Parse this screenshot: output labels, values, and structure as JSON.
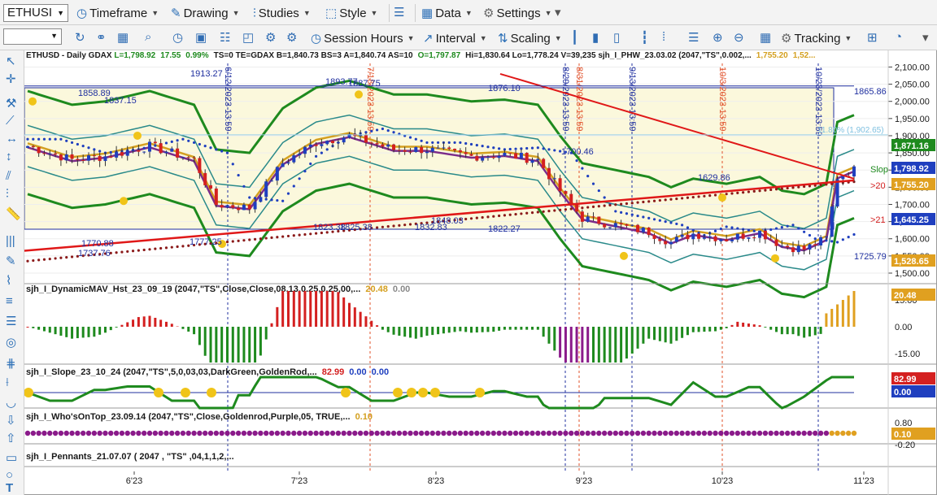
{
  "toolbar": {
    "symbol": "ETHUSI",
    "timeframe": "Timeframe",
    "drawing": "Drawing",
    "studies": "Studies",
    "style": "Style",
    "data": "Data",
    "settings": "Settings",
    "session_hours": "Session Hours",
    "interval": "Interval",
    "scaling": "Scaling",
    "tracking": "Tracking"
  },
  "header": {
    "prefix": "ETHUSD - Daily  GDAX ",
    "last": "L=1,798.92",
    "chg": "17.55",
    "pct": "0.99%",
    "mid": "TS=0  TE=GDAX  B=1,840.73  BS=3  A=1,840.74  AS=10",
    "open": "O=1,797.87",
    "rest": "Hi=1,830.64  Lo=1,778.24  V=39,235  sjh_I_PHW_23.03.02 (2047,\"TS\",0.002,...",
    "v1": "1,755.20",
    "v2": "1,52..."
  },
  "chart_data": {
    "type": "candlestick",
    "title": "ETHUSD - Daily GDAX",
    "x_ticks": [
      "6'23",
      "7'23",
      "8'23",
      "9'23",
      "10'23",
      "11'23"
    ],
    "y_ticks": [
      "2,100.00",
      "2,050.00",
      "2,000.00",
      "1,950.00",
      "1,900.00",
      "1,850.00",
      "1,800.00",
      "1,750.00",
      "1,700.00",
      "1,650.00",
      "1,600.00",
      "1,550.00",
      "1,500.00"
    ],
    "ylim": [
      1500,
      2120
    ],
    "price_labels": [
      "1858.89",
      "1837.15",
      "1913.27",
      "1893.77",
      "1887.75",
      "1876.10",
      "1865.86",
      "1700.46",
      "1629.86",
      "1770.88",
      "1737.76",
      "1777.25",
      "1823.38",
      "1825.38",
      "1832.83",
      "1848.03",
      "1822.27",
      "1725.79"
    ],
    "date_markers": [
      "6/12/2023 13:59",
      "7/18/2023 13:59",
      "8/29/2023 13:59",
      "8/31/2023 13:59",
      "9/13/2023 13:59",
      "10/3/2023 13:59",
      "10/23/2023 13:59"
    ],
    "fib_label": "11.80% (1,902.65)",
    "right_labels": [
      "Slop",
      ">20",
      ">21"
    ],
    "axis_badges": [
      {
        "text": "1,871.16",
        "color": "#1e8a1e"
      },
      {
        "text": "1,798.92",
        "color": "#1f3fbf"
      },
      {
        "text": "1,755.20",
        "color": "#e0a020"
      },
      {
        "text": "1,645.25",
        "color": "#1f3fbf"
      },
      {
        "text": "1,528.65",
        "color": "#e0a020"
      }
    ],
    "series": [
      {
        "name": "price",
        "values": []
      }
    ],
    "panes": [
      {
        "title": "sjh_I_DynamicMAV_Hst_23_09_19 (2047,\"TS\",Close,Close,08,13,0.25,0.25,00,...",
        "v1": "20.48",
        "v2": "0.00",
        "ticks": [
          "15.00",
          "0.00",
          "-15.00"
        ],
        "badge": "20.48"
      },
      {
        "title": "sjh_I_Slope_23_10_24 (2047,\"TS\",5,0,03,03,DarkGreen,GoldenRod,...",
        "v1": "82.99",
        "v2": "0.00",
        "v3": "0.00",
        "badges": [
          "82.99",
          "0.00"
        ]
      },
      {
        "title": "sjh_I_Who'sOnTop_23.09.14 (2047,\"TS\",Close,Goldenrod,Purple,05,  TRUE,...",
        "v1": "0.10",
        "ticks": [
          "0.80",
          "-0.20"
        ],
        "badge": "0.10"
      },
      {
        "title": "sjh_I_Pennants_21.07.07 (  2047 , \"TS\" ,04,1,1,2,..."
      }
    ],
    "colors": {
      "up": "#1f3fbf",
      "down": "#d42020",
      "upper_band": "#1e8a1e",
      "ma": "#7b2c8a",
      "gold": "#d4a020"
    }
  }
}
